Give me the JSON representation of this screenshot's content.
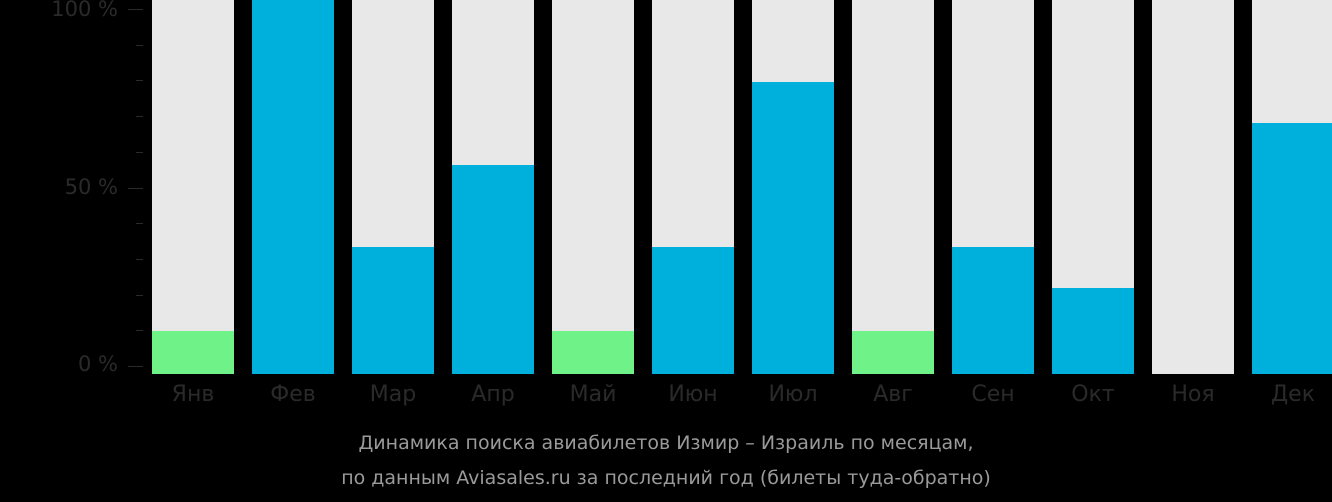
{
  "chart_data": {
    "type": "bar",
    "title": "Динамика поиска авиабилетов Измир – Израиль по месяцам, по данным Aviasales.ru за последний год (билеты туда-обратно)",
    "xlabel": "",
    "ylabel": "",
    "ylim": [
      0,
      100
    ],
    "y_ticks": [
      "0 %",
      "50 %",
      "100 %"
    ],
    "categories": [
      "Янв",
      "Фев",
      "Мар",
      "Апр",
      "Май",
      "Июн",
      "Июл",
      "Авг",
      "Сен",
      "Окт",
      "Ноя",
      "Дек"
    ],
    "values": [
      11.5,
      100,
      34,
      56,
      11.5,
      34,
      78,
      11.5,
      34,
      23,
      0,
      67
    ],
    "bar_colors": [
      "#6ff287",
      "#00b0dc",
      "#00b0dc",
      "#00b0dc",
      "#6ff287",
      "#00b0dc",
      "#00b0dc",
      "#6ff287",
      "#00b0dc",
      "#00b0dc",
      "#00b0dc",
      "#00b0dc"
    ],
    "background_bar_color": "#e8e8e8",
    "grid": false,
    "legend": null
  },
  "axis": {
    "y100": "100 %",
    "y50": "50 %",
    "y0": "0 %"
  },
  "caption": {
    "line1": "Динамика поиска авиабилетов Измир – Израиль по месяцам,",
    "line2": "по данным Aviasales.ru за последний год (билеты туда-обратно)"
  }
}
